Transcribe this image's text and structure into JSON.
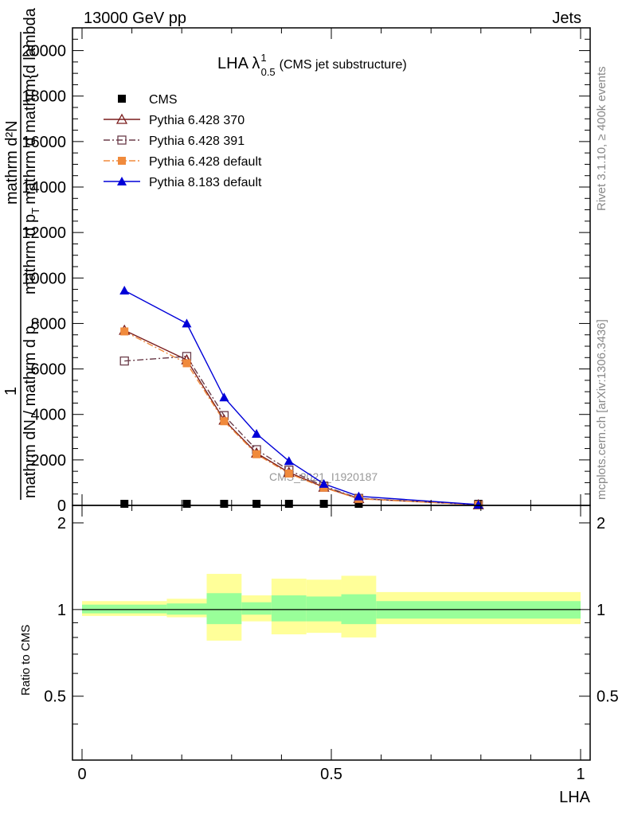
{
  "header": {
    "left": "13000 GeV pp",
    "right": "Jets"
  },
  "side_text": {
    "rivet": "Rivet 3.1.10, ≥ 400k events",
    "mcplots": "mcplots.cern.ch [arXiv:1306.3436]"
  },
  "chart_data": {
    "type": "line",
    "title": "LHA λ",
    "title_sup": "1",
    "title_sub": "0.5",
    "title_suffix": "(CMS jet substructure)",
    "watermark": "CMS_2021_I1920187",
    "ylabel_main": {
      "numerator_top": "mathrm d²N",
      "numerator_bottom": "mathrm d p",
      "numerator_bottom_sub": "T",
      "numerator_bottom_suffix": "mathrm d mathrm{d lambda",
      "one": "1",
      "denominator": "mathrm dN / mathrm d p",
      "denominator_sub": "T"
    },
    "ylabel_ratio": "Ratio to CMS",
    "xlabel": "LHA",
    "xlim": [
      0,
      1
    ],
    "ylim_main": [
      0,
      21000
    ],
    "ylim_ratio": [
      0.3,
      2.3
    ],
    "ratio_scale": "log",
    "x_ticks": [
      0,
      0.5,
      1
    ],
    "x_tick_labels": [
      "0",
      "0.5",
      "1"
    ],
    "y_ticks_main": [
      0,
      2000,
      4000,
      6000,
      8000,
      10000,
      12000,
      14000,
      16000,
      18000,
      20000
    ],
    "y_tick_labels_main": [
      "0",
      "2000",
      "4000",
      "6000",
      "8000",
      "10000",
      "12000",
      "14000",
      "16000",
      "18000",
      "20000"
    ],
    "y_ticks_ratio": [
      0.5,
      1,
      2
    ],
    "y_tick_labels_ratio": [
      "0.5",
      "1",
      "2"
    ],
    "x": [
      0.085,
      0.21,
      0.285,
      0.35,
      0.415,
      0.485,
      0.555,
      0.795
    ],
    "bin_edges": [
      0,
      0.17,
      0.25,
      0.32,
      0.38,
      0.45,
      0.52,
      0.59,
      1.0
    ],
    "ratio_bands": {
      "yellow_lo": [
        0.95,
        0.94,
        0.78,
        0.91,
        0.82,
        0.83,
        0.8,
        0.89
      ],
      "yellow_hi": [
        1.07,
        1.09,
        1.33,
        1.12,
        1.28,
        1.27,
        1.31,
        1.15
      ],
      "green_lo": [
        0.97,
        0.96,
        0.89,
        0.96,
        0.91,
        0.91,
        0.89,
        0.93
      ],
      "green_hi": [
        1.04,
        1.05,
        1.14,
        1.06,
        1.12,
        1.11,
        1.13,
        1.07
      ]
    },
    "legend_position": "top-left",
    "series": [
      {
        "name": "CMS",
        "color": "#000000",
        "marker": "filled-square",
        "line": "none",
        "values": [
          0,
          0,
          0,
          0,
          0,
          0,
          0,
          0
        ]
      },
      {
        "name": "Pythia 6.428 370",
        "color": "#7a1c1c",
        "marker": "open-triangle",
        "line": "solid",
        "values": [
          7700,
          6400,
          3750,
          2300,
          1450,
          800,
          300,
          25
        ]
      },
      {
        "name": "Pythia 6.428 391",
        "color": "#6b3d4a",
        "marker": "open-square",
        "line": "dashdot",
        "values": [
          6350,
          6550,
          3950,
          2450,
          1550,
          850,
          310,
          25
        ]
      },
      {
        "name": "Pythia 6.428 default",
        "color": "#f08a3c",
        "marker": "filled-square",
        "line": "dashdot",
        "values": [
          7650,
          6250,
          3700,
          2250,
          1400,
          780,
          290,
          25
        ]
      },
      {
        "name": "Pythia 8.183 default",
        "color": "#0000d8",
        "marker": "filled-triangle",
        "line": "solid",
        "values": [
          9450,
          8000,
          4750,
          3150,
          1950,
          950,
          400,
          35
        ]
      }
    ]
  }
}
